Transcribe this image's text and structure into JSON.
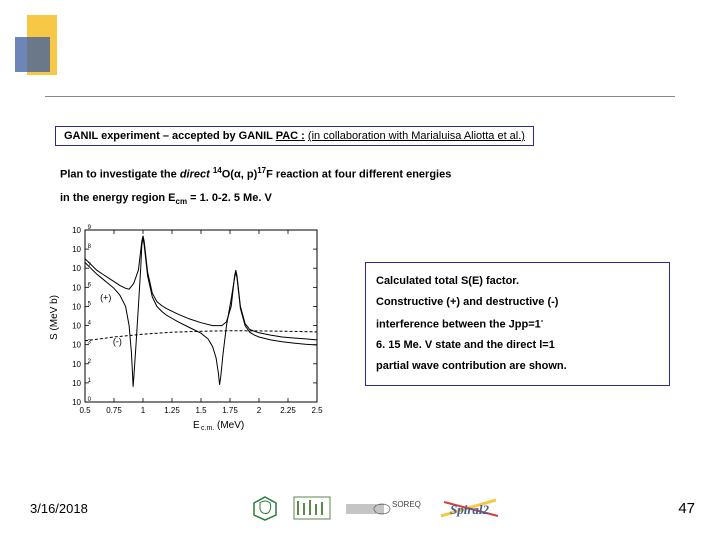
{
  "title": {
    "prefix": "GANIL experiment – accepted by GANIL ",
    "pac": "PAC :",
    "collab": "(in collaboration with Marialuisa Aliotta et al.)"
  },
  "desc": {
    "line1_a": "Plan to investigate the ",
    "line1_direct": "direct",
    "line1_b": " ",
    "line1_sup14": "14",
    "line1_c": "O(α, p)",
    "line1_sup17": "17",
    "line1_d": "F reaction at four different energies",
    "line2_a": "in the energy region E",
    "line2_sub": "cm",
    "line2_b": " = 1. 0-2. 5 Me. V"
  },
  "info": {
    "l1": "Calculated total S(E) factor.",
    "l2": " Constructive (+) and destructive (-)",
    "l3": "interference between the Jpp=1",
    "l3b": "-",
    "l4": "6. 15 Me. V state and the direct l=1",
    "l5": "partial wave contribution are shown."
  },
  "chart": {
    "xlabel": "E",
    "xlabel_sub": "c.m.",
    "xlabel_unit": " (MeV)",
    "ylabel": "S (MeV b)",
    "xticks": [
      "0.5",
      "0.75",
      "1",
      "1.25",
      "1.5",
      "1.75",
      "2",
      "2.25",
      "2.5"
    ],
    "xtick_pos": [
      0.5,
      0.75,
      1.0,
      1.25,
      1.5,
      1.75,
      2.0,
      2.25,
      2.5
    ],
    "ylim": [
      1,
      1000000000.0
    ],
    "yticks": [
      "10⁰",
      "10¹",
      "10²",
      "10³",
      "10⁴",
      "10⁵",
      "10⁶",
      "10⁷",
      "10⁸",
      "10⁹"
    ],
    "ytick_exp": [
      0,
      1,
      2,
      3,
      4,
      5,
      6,
      7,
      8,
      9
    ],
    "background_color": "#ffffff",
    "axis_color": "#000000",
    "line_color": "#000000",
    "line_width": 1.0,
    "label_fontsize": 10,
    "tick_fontsize": 8,
    "plus_label": "(+)",
    "minus_label": "(-)",
    "series_plus": [
      [
        0.5,
        7.5
      ],
      [
        0.55,
        7.2
      ],
      [
        0.6,
        6.9
      ],
      [
        0.65,
        6.7
      ],
      [
        0.7,
        6.5
      ],
      [
        0.75,
        6.3
      ],
      [
        0.8,
        6.1
      ],
      [
        0.85,
        5.95
      ],
      [
        0.88,
        5.9
      ],
      [
        0.92,
        6.2
      ],
      [
        0.96,
        6.9
      ],
      [
        0.99,
        8.4
      ],
      [
        1.0,
        8.7
      ],
      [
        1.01,
        8.4
      ],
      [
        1.04,
        6.8
      ],
      [
        1.08,
        5.7
      ],
      [
        1.12,
        5.25
      ],
      [
        1.16,
        5.05
      ],
      [
        1.2,
        4.9
      ],
      [
        1.3,
        4.6
      ],
      [
        1.4,
        4.35
      ],
      [
        1.5,
        4.15
      ],
      [
        1.6,
        4.0
      ],
      [
        1.68,
        4.0
      ],
      [
        1.72,
        4.2
      ],
      [
        1.76,
        5.0
      ],
      [
        1.79,
        6.6
      ],
      [
        1.8,
        6.9
      ],
      [
        1.81,
        6.6
      ],
      [
        1.84,
        5.0
      ],
      [
        1.88,
        4.1
      ],
      [
        1.92,
        3.8
      ],
      [
        1.96,
        3.7
      ],
      [
        2.0,
        3.62
      ],
      [
        2.1,
        3.5
      ],
      [
        2.2,
        3.4
      ],
      [
        2.3,
        3.35
      ],
      [
        2.4,
        3.3
      ],
      [
        2.5,
        3.25
      ]
    ],
    "series_minus": [
      [
        0.5,
        7.3
      ],
      [
        0.55,
        7.0
      ],
      [
        0.6,
        6.7
      ],
      [
        0.65,
        6.45
      ],
      [
        0.7,
        6.2
      ],
      [
        0.75,
        5.95
      ],
      [
        0.8,
        5.6
      ],
      [
        0.85,
        5.0
      ],
      [
        0.88,
        4.0
      ],
      [
        0.9,
        2.6
      ],
      [
        0.91,
        1.4
      ],
      [
        0.915,
        0.8
      ],
      [
        0.92,
        1.2
      ],
      [
        0.94,
        3.0
      ],
      [
        0.96,
        5.0
      ],
      [
        0.98,
        7.0
      ],
      [
        0.99,
        8.2
      ],
      [
        1.0,
        8.6
      ],
      [
        1.01,
        8.2
      ],
      [
        1.04,
        6.6
      ],
      [
        1.08,
        5.5
      ],
      [
        1.12,
        5.0
      ],
      [
        1.16,
        4.75
      ],
      [
        1.2,
        4.55
      ],
      [
        1.3,
        4.2
      ],
      [
        1.4,
        3.9
      ],
      [
        1.5,
        3.6
      ],
      [
        1.56,
        3.3
      ],
      [
        1.6,
        2.9
      ],
      [
        1.63,
        2.3
      ],
      [
        1.65,
        1.5
      ],
      [
        1.66,
        0.9
      ],
      [
        1.67,
        1.3
      ],
      [
        1.69,
        2.5
      ],
      [
        1.72,
        4.0
      ],
      [
        1.76,
        5.4
      ],
      [
        1.79,
        6.5
      ],
      [
        1.8,
        6.8
      ],
      [
        1.81,
        6.5
      ],
      [
        1.84,
        4.9
      ],
      [
        1.88,
        4.0
      ],
      [
        1.92,
        3.65
      ],
      [
        1.96,
        3.5
      ],
      [
        2.0,
        3.4
      ],
      [
        2.1,
        3.25
      ],
      [
        2.2,
        3.15
      ],
      [
        2.3,
        3.08
      ],
      [
        2.4,
        3.02
      ],
      [
        2.5,
        2.98
      ]
    ],
    "series_dashed": [
      [
        0.5,
        3.2
      ],
      [
        0.75,
        3.4
      ],
      [
        1.0,
        3.55
      ],
      [
        1.25,
        3.65
      ],
      [
        1.5,
        3.7
      ],
      [
        1.75,
        3.73
      ],
      [
        2.0,
        3.72
      ],
      [
        2.25,
        3.7
      ],
      [
        2.5,
        3.67
      ]
    ]
  },
  "footer": {
    "date": "3/16/2018",
    "page": "47"
  },
  "logos": {
    "a_color": "#2a7a3a",
    "b_color": "#5a8a4a",
    "c_text": "SOREQ",
    "c_color": "#666666",
    "d_text": "Spiral2",
    "d_color": "#3b5ea0",
    "d_accent": "#f6c845"
  }
}
